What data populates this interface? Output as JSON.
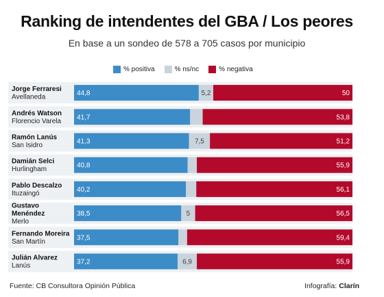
{
  "title": "Ranking de intendentes del GBA / Los peores",
  "subtitle": "En base a un sondeo de 578 a 705 casos por municipio",
  "legend": {
    "positive": "% positiva",
    "nsnc": "% ns/nc",
    "negative": "% negativa"
  },
  "colors": {
    "positive": "#3c8cc8",
    "nsnc": "#c9d4dc",
    "negative": "#b30a2c",
    "row_bg": "#eef1f4"
  },
  "footer": {
    "source": "Fuente: CB Consultora Opinión Pública",
    "credit_prefix": "Infografía:",
    "credit_brand": "Clarín"
  },
  "chart_data": {
    "type": "bar",
    "stacked": true,
    "orientation": "horizontal",
    "title": "Ranking de intendentes del GBA / Los peores",
    "subtitle": "En base a un sondeo de 578 a 705 casos por municipio",
    "categories": [
      {
        "name_lines": [
          "Jorge Ferraresi"
        ],
        "municipio": "Avellaneda"
      },
      {
        "name_lines": [
          "Andrés Watson"
        ],
        "municipio": "Florencio Varela"
      },
      {
        "name_lines": [
          "Ramón Lanús"
        ],
        "municipio": "San Isidro"
      },
      {
        "name_lines": [
          "Damián Selci"
        ],
        "municipio": "Hurlingham"
      },
      {
        "name_lines": [
          "Pablo Descalzo"
        ],
        "municipio": "Ituzaingó"
      },
      {
        "name_lines": [
          "Gustavo",
          "Menéndez"
        ],
        "municipio": "Merlo"
      },
      {
        "name_lines": [
          "Fernando Moreira"
        ],
        "municipio": "San Martín"
      },
      {
        "name_lines": [
          "Julián Alvarez"
        ],
        "municipio": "Lanús"
      }
    ],
    "series": [
      {
        "name": "% positiva",
        "values": [
          44.8,
          41.7,
          41.3,
          40.8,
          40.2,
          38.5,
          37.5,
          37.2
        ],
        "labels": [
          "44,8",
          "41,7",
          "41,3",
          "40,8",
          "40,2",
          "38,5",
          "37,5",
          "37,2"
        ]
      },
      {
        "name": "% ns/nc",
        "values": [
          5.2,
          4.5,
          7.5,
          3.3,
          3.7,
          5,
          3.1,
          6.9
        ],
        "labels": [
          "5,2",
          "",
          "7,5",
          "",
          "",
          "5",
          "",
          "6,9"
        ]
      },
      {
        "name": "% negativa",
        "values": [
          50,
          53.8,
          51.2,
          55.9,
          56.1,
          56.5,
          59.4,
          55.9
        ],
        "labels": [
          "50",
          "53,8",
          "51,2",
          "55,9",
          "56,1",
          "56,5",
          "59,4",
          "55,9"
        ]
      }
    ],
    "xlim": [
      0,
      100
    ]
  }
}
